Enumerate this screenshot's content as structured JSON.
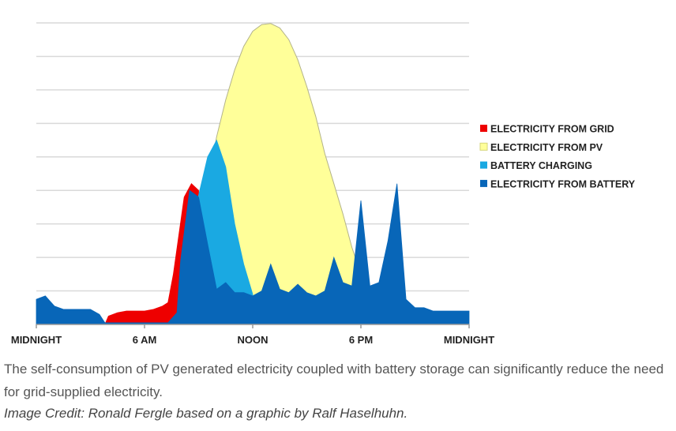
{
  "chart_data": {
    "type": "area",
    "title": "",
    "xlabel": "",
    "ylabel": "",
    "xlim": [
      0,
      24
    ],
    "ylim": [
      0,
      9
    ],
    "grid": true,
    "legend_position": "right",
    "x_ticks": [
      {
        "x": 0,
        "label": "MIDNIGHT"
      },
      {
        "x": 6,
        "label": "6 AM"
      },
      {
        "x": 12,
        "label": "NOON"
      },
      {
        "x": 18,
        "label": "6 PM"
      },
      {
        "x": 24,
        "label": "MIDNIGHT"
      }
    ],
    "series": [
      {
        "name": "ELECTRICITY FROM PV",
        "color": "#ffff99",
        "points": [
          [
            8.3,
            1.1
          ],
          [
            9,
            2.6
          ],
          [
            9.5,
            4.2
          ],
          [
            10,
            5.6
          ],
          [
            10.5,
            6.7
          ],
          [
            11,
            7.6
          ],
          [
            11.5,
            8.3
          ],
          [
            12,
            8.75
          ],
          [
            12.5,
            8.95
          ],
          [
            13,
            8.98
          ],
          [
            13.5,
            8.85
          ],
          [
            14,
            8.5
          ],
          [
            14.5,
            7.9
          ],
          [
            15,
            7.1
          ],
          [
            15.5,
            6.2
          ],
          [
            16,
            5.1
          ],
          [
            16.5,
            4.2
          ],
          [
            17,
            3.3
          ],
          [
            17.5,
            2.3
          ],
          [
            18,
            1.5
          ],
          [
            18.5,
            0.8
          ],
          [
            19,
            0.3
          ]
        ]
      },
      {
        "name": "ELECTRICITY FROM GRID",
        "color": "#ee0000",
        "points": [
          [
            3.8,
            0
          ],
          [
            4,
            0.25
          ],
          [
            4.5,
            0.35
          ],
          [
            5,
            0.4
          ],
          [
            5.5,
            0.4
          ],
          [
            6,
            0.4
          ],
          [
            6.5,
            0.45
          ],
          [
            7,
            0.55
          ],
          [
            7.3,
            0.65
          ],
          [
            7.6,
            1.5
          ],
          [
            8.2,
            3.8
          ],
          [
            8.6,
            4.2
          ],
          [
            9,
            4.0
          ],
          [
            9,
            0
          ],
          [
            3.8,
            0
          ]
        ]
      },
      {
        "name": "BATTERY CHARGING",
        "color": "#1aa9e2",
        "points": [
          [
            8.8,
            3.4
          ],
          [
            9.5,
            5.0
          ],
          [
            10,
            5.5
          ],
          [
            10.5,
            4.7
          ],
          [
            11,
            3.0
          ],
          [
            11.5,
            1.8
          ],
          [
            12,
            0.9
          ],
          [
            12,
            0
          ],
          [
            8.8,
            0
          ]
        ]
      },
      {
        "name": "ELECTRICITY FROM BATTERY",
        "color": "#0866b8",
        "points": [
          [
            0,
            0.75
          ],
          [
            0.5,
            0.85
          ],
          [
            1,
            0.55
          ],
          [
            1.5,
            0.45
          ],
          [
            2,
            0.45
          ],
          [
            2.5,
            0.45
          ],
          [
            3,
            0.45
          ],
          [
            3.5,
            0.3
          ],
          [
            3.8,
            0.05
          ],
          [
            7.3,
            0.05
          ],
          [
            7.8,
            0.35
          ],
          [
            8,
            1.9
          ],
          [
            8.5,
            4.0
          ],
          [
            9,
            3.8
          ],
          [
            9.5,
            2.4
          ],
          [
            10,
            1.05
          ],
          [
            10.5,
            1.25
          ],
          [
            11,
            0.95
          ],
          [
            11.5,
            0.95
          ],
          [
            12,
            0.85
          ],
          [
            12.5,
            1.0
          ],
          [
            13,
            1.8
          ],
          [
            13.5,
            1.05
          ],
          [
            14,
            0.95
          ],
          [
            14.5,
            1.2
          ],
          [
            15,
            0.95
          ],
          [
            15.5,
            0.85
          ],
          [
            16,
            1.0
          ],
          [
            16.5,
            2.0
          ],
          [
            17,
            1.25
          ],
          [
            17.5,
            1.15
          ],
          [
            18,
            3.7
          ],
          [
            18.5,
            1.15
          ],
          [
            19,
            1.25
          ],
          [
            19.5,
            2.5
          ],
          [
            20,
            4.2
          ],
          [
            20.5,
            0.75
          ],
          [
            21,
            0.5
          ],
          [
            21.5,
            0.5
          ],
          [
            22,
            0.4
          ],
          [
            22.5,
            0.4
          ],
          [
            23,
            0.4
          ],
          [
            23.5,
            0.4
          ],
          [
            24,
            0.4
          ]
        ]
      }
    ]
  },
  "legend": [
    {
      "label": "ELECTRICITY FROM GRID",
      "color": "#ee0000"
    },
    {
      "label": "ELECTRICITY FROM PV",
      "color": "#ffff99"
    },
    {
      "label": "BATTERY CHARGING",
      "color": "#1aa9e2"
    },
    {
      "label": "ELECTRICITY FROM BATTERY",
      "color": "#0866b8"
    }
  ],
  "caption": {
    "text": "The self-consumption of PV generated electricity coupled with battery storage can significantly reduce the need for grid-supplied electricity.",
    "credit": "Image Credit: Ronald Fergle based on a graphic by Ralf Haselhuhn."
  }
}
